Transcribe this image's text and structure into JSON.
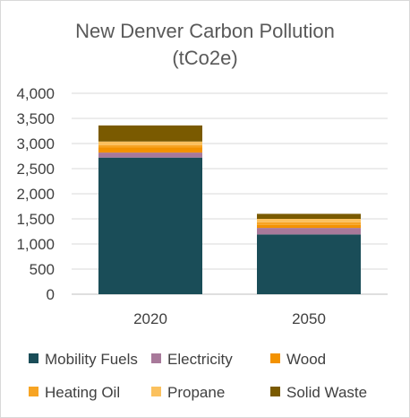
{
  "chart_data": {
    "type": "bar",
    "stacked": true,
    "title": "New Denver Carbon Pollution",
    "subtitle": "(tCo2e)",
    "xlabel": "",
    "ylabel": "",
    "categories": [
      "2020",
      "2050"
    ],
    "ylim": [
      0,
      4000
    ],
    "yticks": [
      0,
      500,
      1000,
      1500,
      2000,
      2500,
      3000,
      3500,
      4000
    ],
    "ytick_labels": [
      "0",
      "500",
      "1,000",
      "1,500",
      "2,000",
      "2,500",
      "3,000",
      "3,500",
      "4,000"
    ],
    "grid": true,
    "legend_position": "bottom",
    "series": [
      {
        "name": "Mobility Fuels",
        "color": "#1a4d58",
        "values": [
          2720,
          1190
        ]
      },
      {
        "name": "Electricity",
        "color": "#a8799a",
        "values": [
          100,
          130
        ]
      },
      {
        "name": "Wood",
        "color": "#f39200",
        "values": [
          100,
          60
        ]
      },
      {
        "name": "Heating Oil",
        "color": "#f7a423",
        "values": [
          50,
          50
        ]
      },
      {
        "name": "Propane",
        "color": "#fbc15e",
        "values": [
          70,
          70
        ]
      },
      {
        "name": "Solid Waste",
        "color": "#7a5a00",
        "values": [
          320,
          100
        ]
      }
    ]
  }
}
